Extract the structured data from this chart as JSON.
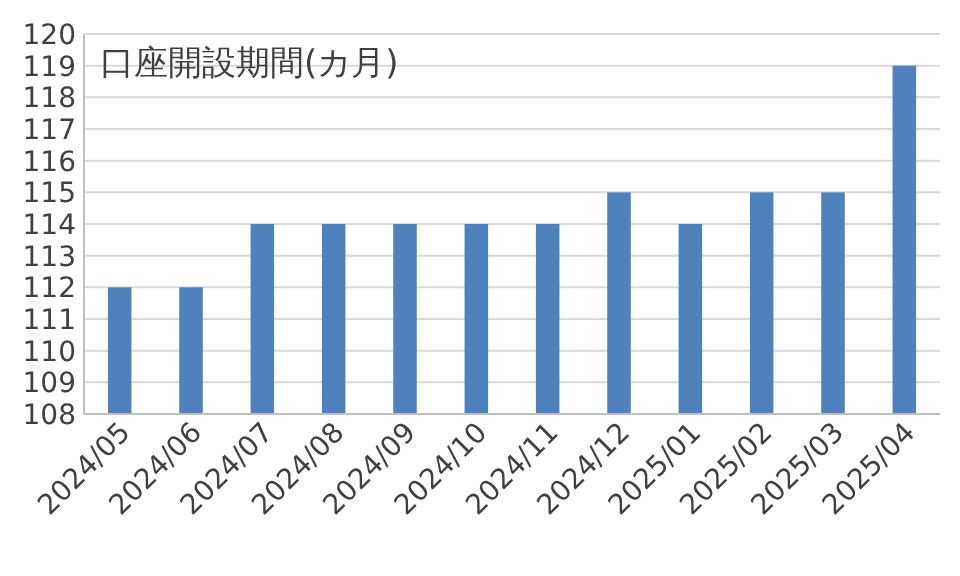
{
  "chart_data": {
    "type": "bar",
    "title": "口座開設期間(カ月)",
    "categories": [
      "2024/05",
      "2024/06",
      "2024/07",
      "2024/08",
      "2024/09",
      "2024/10",
      "2024/11",
      "2024/12",
      "2025/01",
      "2025/02",
      "2025/03",
      "2025/04"
    ],
    "values": [
      112,
      112,
      114,
      114,
      114,
      114,
      114,
      115,
      114,
      115,
      115,
      119
    ],
    "color": "#4f81bd",
    "ylim": [
      108,
      120
    ],
    "yticks": [
      108,
      109,
      110,
      111,
      112,
      113,
      114,
      115,
      116,
      117,
      118,
      119,
      120
    ],
    "grid": "y"
  }
}
